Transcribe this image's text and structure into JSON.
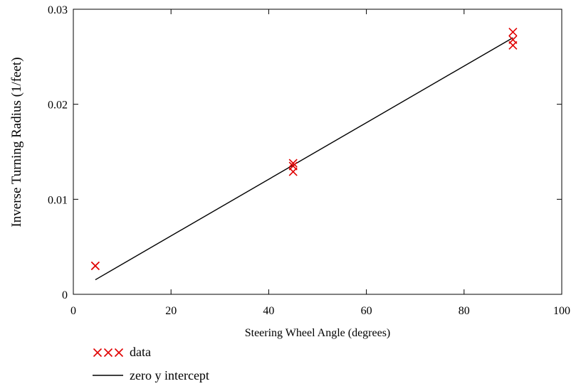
{
  "chart_data": {
    "type": "scatter",
    "title": "",
    "xlabel": "Steering Wheel Angle (degrees)",
    "ylabel": "Inverse Turning Radius (1/feet)",
    "xlim": [
      0,
      100
    ],
    "ylim": [
      0,
      0.03
    ],
    "x_ticks": [
      0,
      20,
      40,
      60,
      80,
      100
    ],
    "x_tick_labels": [
      "0",
      "20",
      "40",
      "60",
      "80",
      "100"
    ],
    "y_ticks": [
      0,
      0.01,
      0.02,
      0.03
    ],
    "y_tick_labels": [
      "0",
      "0.01",
      "0.02",
      "0.03"
    ],
    "grid": false,
    "legend_position": "bottom-left, below plot",
    "series": [
      {
        "name": "data",
        "kind": "scatter",
        "marker": "x",
        "color": "#e00000",
        "points": [
          {
            "x": 4.5,
            "y": 0.003
          },
          {
            "x": 4.5,
            "y": 0.003
          },
          {
            "x": 45,
            "y": 0.0138
          },
          {
            "x": 45,
            "y": 0.0135
          },
          {
            "x": 45,
            "y": 0.0129
          },
          {
            "x": 90,
            "y": 0.0276
          },
          {
            "x": 90,
            "y": 0.0268
          },
          {
            "x": 90,
            "y": 0.0262
          }
        ]
      },
      {
        "name": "zero y intercept",
        "kind": "line",
        "color": "#000000",
        "points": [
          {
            "x": 4.5,
            "y": 0.00153
          },
          {
            "x": 90,
            "y": 0.027
          }
        ]
      }
    ]
  }
}
